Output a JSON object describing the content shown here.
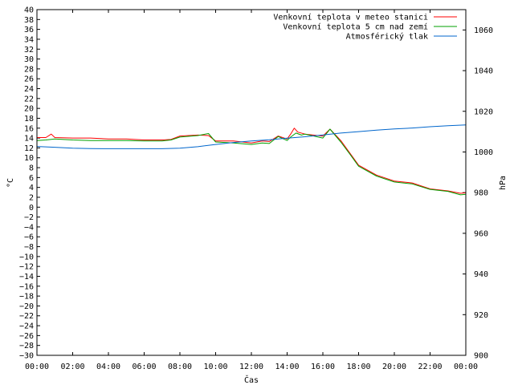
{
  "chart_data": {
    "type": "line",
    "xlabel": "Čas",
    "ylabel_left": "°C",
    "ylabel_right": "hPa",
    "x_ticks": [
      "00:00",
      "02:00",
      "04:00",
      "06:00",
      "08:00",
      "10:00",
      "12:00",
      "14:00",
      "16:00",
      "18:00",
      "20:00",
      "22:00",
      "00:00"
    ],
    "x_range_hours": [
      0,
      24
    ],
    "y_left_range": [
      -30,
      40
    ],
    "y_left_step": 2,
    "y_right_range": [
      900,
      1070
    ],
    "y_right_ticks": [
      900,
      920,
      940,
      960,
      980,
      1000,
      1020,
      1040,
      1060
    ],
    "grid": false,
    "legend_position": "top-right",
    "series": [
      {
        "name": "Venkovní teplota v meteo stanici",
        "color": "#ff0000",
        "axis": "left",
        "x": [
          0,
          0.5,
          0.8,
          1,
          2,
          3,
          4,
          5,
          6,
          7,
          7.5,
          8,
          9,
          9.6,
          10,
          11,
          12,
          12.6,
          13,
          13.5,
          14,
          14.2,
          14.4,
          14.6,
          15,
          16,
          16.4,
          17,
          17.5,
          18,
          19,
          20,
          21,
          22,
          23,
          23.7,
          24
        ],
        "y": [
          14.1,
          14.1,
          14.8,
          14.1,
          14.0,
          14.0,
          13.8,
          13.8,
          13.6,
          13.6,
          13.7,
          14.4,
          14.6,
          14.5,
          13.4,
          13.4,
          13.0,
          13.4,
          13.3,
          14.4,
          13.8,
          14.8,
          16.0,
          15.2,
          14.8,
          14.4,
          15.8,
          13.5,
          11.0,
          8.5,
          6.5,
          5.3,
          4.9,
          3.7,
          3.3,
          2.8,
          2.9
        ]
      },
      {
        "name": "Venkovní teplota 5 cm nad zemí",
        "color": "#00a000",
        "axis": "left",
        "x": [
          0,
          0.5,
          1,
          2,
          3,
          4,
          5,
          6,
          7,
          7.5,
          8,
          9,
          9.6,
          10,
          11,
          12,
          12.6,
          13,
          13.5,
          14,
          14.2,
          14.5,
          14.8,
          15,
          16,
          16.4,
          17,
          17.5,
          18,
          19,
          20,
          21,
          22,
          23,
          23.7,
          24
        ],
        "y": [
          13.5,
          13.6,
          13.8,
          13.6,
          13.5,
          13.5,
          13.5,
          13.4,
          13.4,
          13.6,
          14.2,
          14.5,
          14.9,
          13.2,
          13.0,
          12.7,
          13.0,
          12.9,
          14.3,
          13.5,
          14.2,
          15.0,
          14.6,
          14.8,
          14.0,
          15.8,
          13.2,
          10.8,
          8.3,
          6.3,
          5.1,
          4.7,
          3.6,
          3.2,
          2.5,
          2.6
        ]
      },
      {
        "name": "Atmosférický tlak",
        "color": "#0066cc",
        "axis": "right",
        "x": [
          0,
          1,
          2,
          3,
          4,
          5,
          6,
          7,
          8,
          9,
          10,
          11,
          12,
          13,
          14,
          15,
          16,
          17,
          18,
          19,
          20,
          21,
          22,
          23,
          24
        ],
        "y": [
          1002.7,
          1002.3,
          1001.9,
          1001.7,
          1001.6,
          1001.6,
          1001.6,
          1001.6,
          1001.9,
          1002.6,
          1003.7,
          1004.7,
          1005.4,
          1006.0,
          1006.8,
          1007.5,
          1008.4,
          1009.3,
          1010.0,
          1010.7,
          1011.3,
          1011.8,
          1012.4,
          1012.9,
          1013.3
        ]
      }
    ]
  }
}
